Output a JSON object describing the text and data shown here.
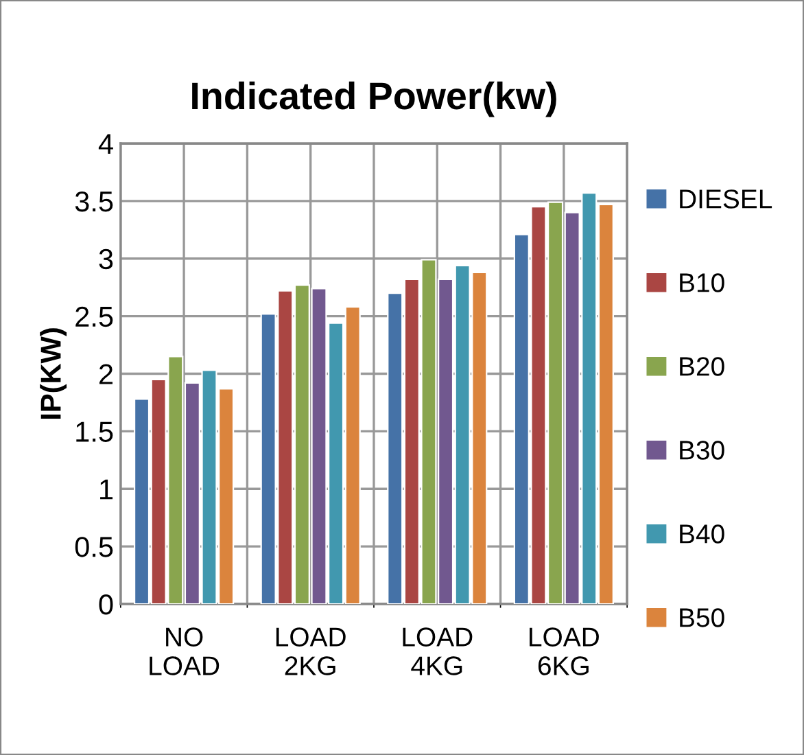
{
  "chart_data": {
    "type": "bar",
    "title": "Indicated Power(kw)",
    "ylabel": "IP(KW)",
    "categories": [
      "NO LOAD",
      "LOAD 2KG",
      "LOAD 4KG",
      "LOAD 6KG"
    ],
    "series": [
      {
        "name": "DIESEL",
        "color": "#4572a7",
        "values": [
          1.78,
          2.52,
          2.7,
          3.21
        ]
      },
      {
        "name": "B10",
        "color": "#aa4643",
        "values": [
          1.95,
          2.72,
          2.82,
          3.45
        ]
      },
      {
        "name": "B20",
        "color": "#89a54e",
        "values": [
          2.15,
          2.77,
          2.99,
          3.49
        ]
      },
      {
        "name": "B30",
        "color": "#71588f",
        "values": [
          1.92,
          2.74,
          2.82,
          3.4
        ]
      },
      {
        "name": "B40",
        "color": "#4198af",
        "values": [
          2.03,
          2.44,
          2.94,
          3.57
        ]
      },
      {
        "name": "B50",
        "color": "#db843d",
        "values": [
          1.87,
          2.58,
          2.88,
          3.47
        ]
      }
    ],
    "ylim": [
      0,
      4
    ],
    "yticks": [
      0,
      0.5,
      1,
      1.5,
      2,
      2.5,
      3,
      3.5,
      4
    ],
    "grid": true,
    "legend": "right"
  }
}
